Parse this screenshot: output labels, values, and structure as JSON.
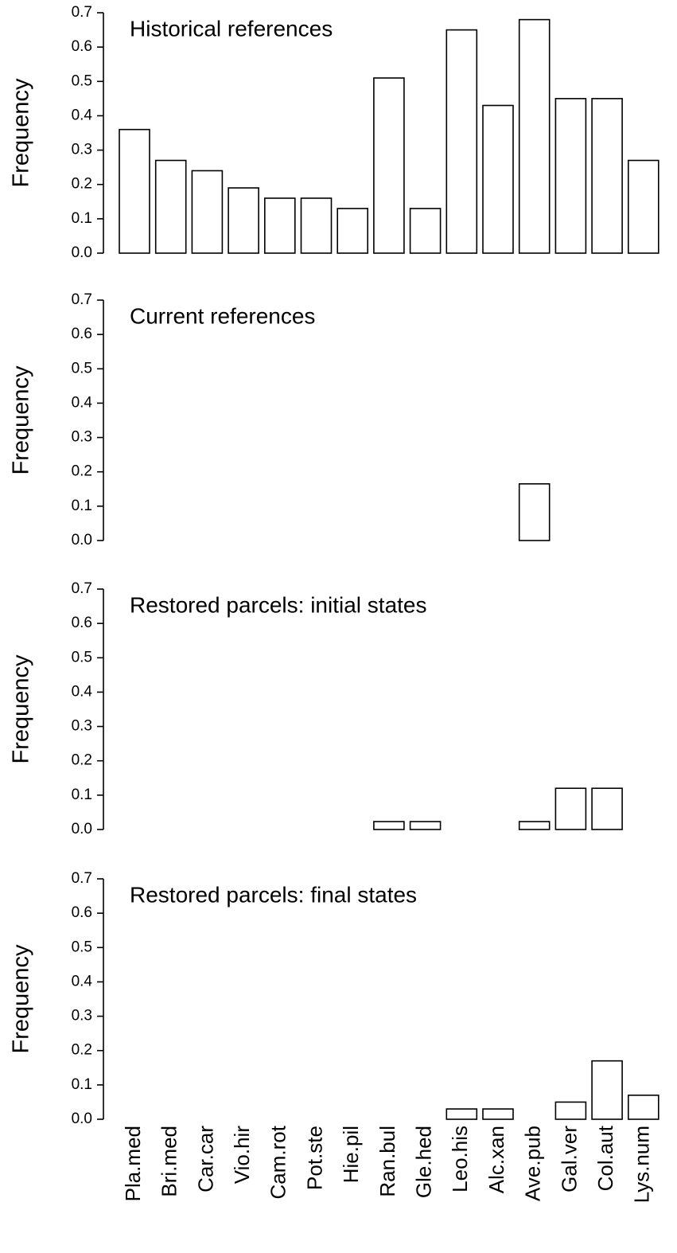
{
  "chart_data": [
    {
      "type": "bar",
      "title": "Historical references",
      "ylabel": "Frequency",
      "color": "#ffffff",
      "edgecolor": "#000000",
      "values": [
        0.36,
        0.27,
        0.24,
        0.19,
        0.16,
        0.16,
        0.13,
        0.51,
        0.13,
        0.65,
        0.43,
        0.68,
        0.45,
        0.45,
        0.27
      ],
      "ylim": [
        0,
        0.7
      ],
      "yticks": [
        {
          "value": 0,
          "label": "0.0"
        },
        0.1,
        0.2,
        0.3,
        0.4,
        0.5,
        0.6,
        0.7
      ]
    },
    {
      "type": "bar",
      "title": "Current references",
      "ylabel": "Frequency",
      "color": "#ffffff",
      "edgecolor": "#000000",
      "values": [
        0,
        0,
        0,
        0,
        0,
        0,
        0,
        0,
        0,
        0,
        0,
        0.165,
        0,
        0,
        0
      ],
      "ylim": [
        0,
        0.7
      ],
      "yticks": [
        {
          "value": 0,
          "label": "0.0"
        },
        0.1,
        0.2,
        0.3,
        0.4,
        0.5,
        0.6,
        0.7
      ]
    },
    {
      "type": "bar",
      "title": "Restored parcels: initial states",
      "ylabel": "Frequency",
      "color": "#ffffff",
      "edgecolor": "#000000",
      "values": [
        0,
        0,
        0,
        0,
        0,
        0,
        0,
        0.023,
        0.023,
        0,
        0,
        0.023,
        0.12,
        0.12,
        0
      ],
      "ylim": [
        0,
        0.7
      ],
      "yticks": [
        {
          "value": 0,
          "label": "0.0"
        },
        0.1,
        0.2,
        0.3,
        0.4,
        0.5,
        0.6,
        0.7
      ]
    },
    {
      "type": "bar",
      "title": "Restored parcels: final states",
      "ylabel": "Frequency",
      "color": "#ffffff",
      "edgecolor": "#000000",
      "categories": [
        "Pla.med",
        "Bri.med",
        "Car.car",
        "Vio.hir",
        "Cam.rot",
        "Pot.ste",
        "Hie.pil",
        "Ran.bul",
        "Gle.hed",
        "Leo.his",
        "Alc.xan",
        "Ave.pub",
        "Gal.ver",
        "Col.aut",
        "Lys.num"
      ],
      "values": [
        0,
        0,
        0,
        0,
        0,
        0,
        0,
        0,
        0,
        0.03,
        0.03,
        0,
        0.05,
        0.17,
        0.07
      ],
      "ylim": [
        0,
        0.7
      ],
      "yticks": [
        {
          "value": 0,
          "label": "0.0"
        },
        0.1,
        0.2,
        0.3,
        0.4,
        0.5,
        0.6,
        0.7
      ]
    }
  ]
}
